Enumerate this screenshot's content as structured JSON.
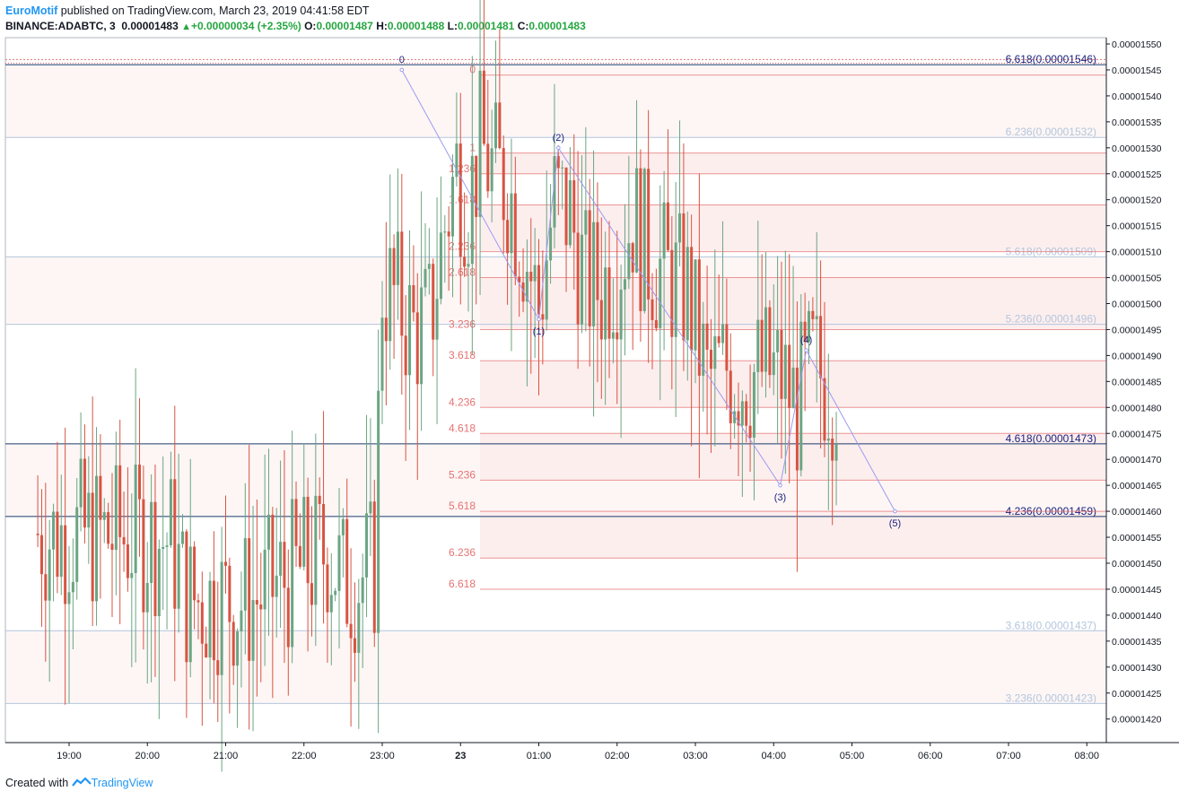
{
  "header": {
    "brand": "EuroMotif",
    "published": " published on TradingView.com, March 23, 2019 04:41:58 EDT",
    "symbol": "BINANCE:ADABTC, 3",
    "last": "0.00001483",
    "change": "+0.00000034 (+2.35%)",
    "o_label": "O:",
    "o": "0.00001487",
    "h_label": "H:",
    "h": "0.00001488",
    "l_label": "L:",
    "l": "0.00001481",
    "c_label": "C:",
    "c": "0.00001483"
  },
  "footer": {
    "created": "Created with",
    "brand": "TradingView"
  },
  "colors": {
    "up": "#6ba583",
    "down": "#d75442",
    "fibLeft": "#e57373",
    "waveLine": "#9c9cf0",
    "accent": "#2196f3"
  },
  "chart_data": {
    "type": "candlestick",
    "ylim": [
      1.416e-05,
      1.551e-05
    ],
    "y_ticks": [
      "0.00001550",
      "0.00001545",
      "0.00001540",
      "0.00001535",
      "0.00001530",
      "0.00001525",
      "0.00001520",
      "0.00001515",
      "0.00001510",
      "0.00001505",
      "0.00001500",
      "0.00001495",
      "0.00001490",
      "0.00001485",
      "0.00001480",
      "0.00001475",
      "0.00001470",
      "0.00001465",
      "0.00001460",
      "0.00001455",
      "0.00001450",
      "0.00001445",
      "0.00001440",
      "0.00001435",
      "0.00001430",
      "0.00001425",
      "0.00001420"
    ],
    "x_ticks": [
      "19:00",
      "20:00",
      "21:00",
      "22:00",
      "23:00",
      "23",
      "01:00",
      "02:00",
      "03:00",
      "04:00",
      "05:00",
      "06:00",
      "07:00",
      "08:00"
    ],
    "fib_left": [
      {
        "label": "0",
        "price": 1.544e-05
      },
      {
        "label": "1",
        "price": 1.529e-05
      },
      {
        "label": "1.236",
        "price": 1.525e-05
      },
      {
        "label": "1.618",
        "price": 1.519e-05
      },
      {
        "label": "2.236",
        "price": 1.51e-05
      },
      {
        "label": "2.618",
        "price": 1.505e-05
      },
      {
        "label": "3.236",
        "price": 1.495e-05
      },
      {
        "label": "3.618",
        "price": 1.489e-05
      },
      {
        "label": "4.236",
        "price": 1.48e-05
      },
      {
        "label": "4.618",
        "price": 1.475e-05
      },
      {
        "label": "5.236",
        "price": 1.466e-05
      },
      {
        "label": "5.618",
        "price": 1.46e-05
      },
      {
        "label": "6.236",
        "price": 1.451e-05
      },
      {
        "label": "6.618",
        "price": 1.445e-05
      }
    ],
    "fib_right": [
      {
        "label": "6.618(0.00001546)",
        "price": 1.546e-05,
        "strong": true
      },
      {
        "label": "6.236(0.00001532)",
        "price": 1.532e-05,
        "strong": false
      },
      {
        "label": "5.618(0.00001509)",
        "price": 1.509e-05,
        "strong": false
      },
      {
        "label": "5.236(0.00001496)",
        "price": 1.496e-05,
        "strong": false
      },
      {
        "label": "4.618(0.00001473)",
        "price": 1.473e-05,
        "strong": true
      },
      {
        "label": "4.236(0.00001459)",
        "price": 1.459e-05,
        "strong": true
      },
      {
        "label": "3.618(0.00001437)",
        "price": 1.437e-05,
        "strong": false
      },
      {
        "label": "3.236(0.00001423)",
        "price": 1.423e-05,
        "strong": false
      }
    ],
    "waves": [
      {
        "label": "0",
        "time": "23:15",
        "price": 1.545e-05,
        "above": true
      },
      {
        "label": "(1)",
        "time": "01:00",
        "price": 1.497e-05,
        "above": false
      },
      {
        "label": "(2)",
        "time": "01:15",
        "price": 1.53e-05,
        "above": true
      },
      {
        "label": "(3)",
        "time": "04:05",
        "price": 1.465e-05,
        "above": false
      },
      {
        "label": "(4)",
        "time": "04:25",
        "price": 1.491e-05,
        "above": true
      },
      {
        "label": "(5)",
        "time": "05:33",
        "price": 1.46e-05,
        "above": false
      }
    ],
    "close_path": [
      [
        18.6,
        1.4557
      ],
      [
        18.8,
        1.4552
      ],
      [
        19.0,
        1.4558
      ],
      [
        19.3,
        1.4553
      ],
      [
        19.6,
        1.4552
      ],
      [
        19.9,
        1.4549
      ],
      [
        20.1,
        1.4546
      ],
      [
        20.3,
        1.4543
      ],
      [
        20.5,
        1.4435
      ],
      [
        20.7,
        1.4426
      ],
      [
        20.9,
        1.4432
      ],
      [
        21.1,
        1.4428
      ],
      [
        21.3,
        1.4426
      ],
      [
        21.5,
        1.444
      ],
      [
        21.7,
        1.4466
      ],
      [
        21.9,
        1.448
      ],
      [
        22.1,
        1.45
      ],
      [
        22.3,
        1.453
      ],
      [
        22.5,
        1.4465
      ],
      [
        22.7,
        1.447
      ],
      [
        22.9,
        1.449
      ],
      [
        23.0,
        1.504
      ],
      [
        23.2,
        1.5
      ],
      [
        23.4,
        1.495
      ],
      [
        23.6,
        1.496
      ],
      [
        23.8,
        1.515
      ],
      [
        23.95,
        1.526
      ],
      [
        24.1,
        1.52
      ],
      [
        24.25,
        1.53
      ],
      [
        24.4,
        1.526
      ],
      [
        24.6,
        1.523
      ],
      [
        24.8,
        1.512
      ],
      [
        25.0,
        1.499
      ],
      [
        25.2,
        1.52
      ],
      [
        25.4,
        1.517
      ],
      [
        25.6,
        1.504
      ],
      [
        25.8,
        1.503
      ],
      [
        26.0,
        1.508
      ],
      [
        26.2,
        1.517
      ],
      [
        26.4,
        1.509
      ],
      [
        26.6,
        1.506
      ],
      [
        26.9,
        1.502
      ],
      [
        27.0,
        1.495
      ],
      [
        27.15,
        1.485
      ],
      [
        27.4,
        1.488
      ],
      [
        27.6,
        1.486
      ],
      [
        27.9,
        1.487
      ],
      [
        28.1,
        1.486
      ],
      [
        28.3,
        1.48
      ],
      [
        28.5,
        1.488
      ],
      [
        28.7,
        1.485
      ],
      [
        28.85,
        1.484
      ]
    ]
  }
}
